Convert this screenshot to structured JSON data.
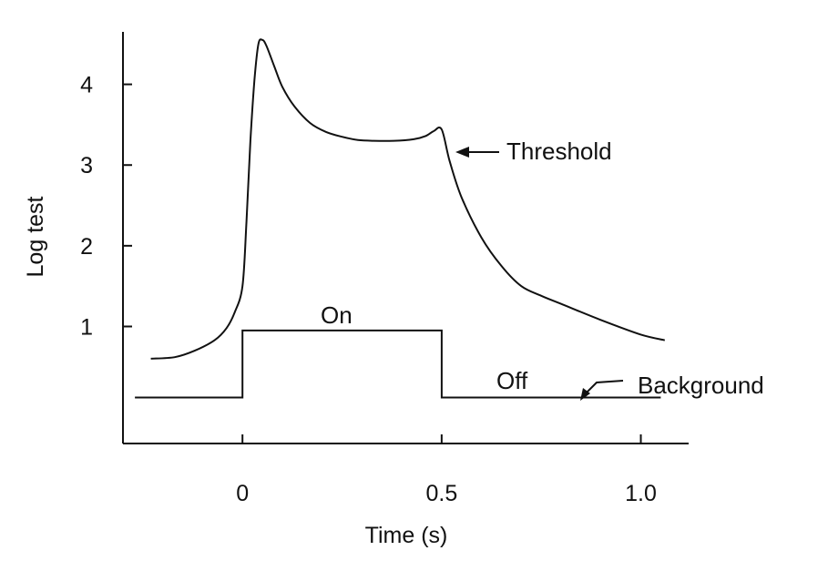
{
  "chart_data": {
    "type": "line",
    "title": "",
    "xlabel": "Time (s)",
    "ylabel": "Log test",
    "xlim": [
      -0.3,
      1.12
    ],
    "ylim": [
      -0.45,
      4.65
    ],
    "x_ticks": [
      {
        "value": 0,
        "label": "0"
      },
      {
        "value": 0.5,
        "label": "0.5"
      },
      {
        "value": 1.0,
        "label": "1.0"
      }
    ],
    "y_ticks": [
      {
        "value": 1,
        "label": "1"
      },
      {
        "value": 2,
        "label": "2"
      },
      {
        "value": 3,
        "label": "3"
      },
      {
        "value": 4,
        "label": "4"
      }
    ],
    "grid": false,
    "legend": "none",
    "series": [
      {
        "name": "Threshold",
        "color": "#111111",
        "x": [
          -0.23,
          -0.17,
          -0.12,
          -0.07,
          -0.04,
          -0.02,
          0.0,
          0.01,
          0.02,
          0.03,
          0.04,
          0.05,
          0.06,
          0.08,
          0.1,
          0.13,
          0.17,
          0.21,
          0.25,
          0.29,
          0.33,
          0.38,
          0.43,
          0.46,
          0.48,
          0.5,
          0.52,
          0.55,
          0.6,
          0.65,
          0.7,
          0.75,
          0.8,
          0.9,
          1.0,
          1.06
        ],
        "y": [
          0.6,
          0.62,
          0.7,
          0.83,
          0.98,
          1.17,
          1.5,
          2.3,
          3.3,
          4.05,
          4.5,
          4.55,
          4.48,
          4.22,
          3.97,
          3.73,
          3.52,
          3.41,
          3.35,
          3.31,
          3.3,
          3.3,
          3.32,
          3.36,
          3.42,
          3.44,
          3.05,
          2.6,
          2.1,
          1.75,
          1.5,
          1.38,
          1.28,
          1.08,
          0.9,
          0.83
        ]
      },
      {
        "name": "Background",
        "color": "#111111",
        "x": [
          -0.27,
          0.0,
          0.0,
          0.5,
          0.5,
          1.05
        ],
        "y": [
          0.12,
          0.12,
          0.95,
          0.95,
          0.12,
          0.12
        ]
      }
    ],
    "annotations": [
      {
        "text": "Threshold"
      },
      {
        "text": "Background"
      },
      {
        "text": "On"
      },
      {
        "text": "Off"
      }
    ]
  }
}
